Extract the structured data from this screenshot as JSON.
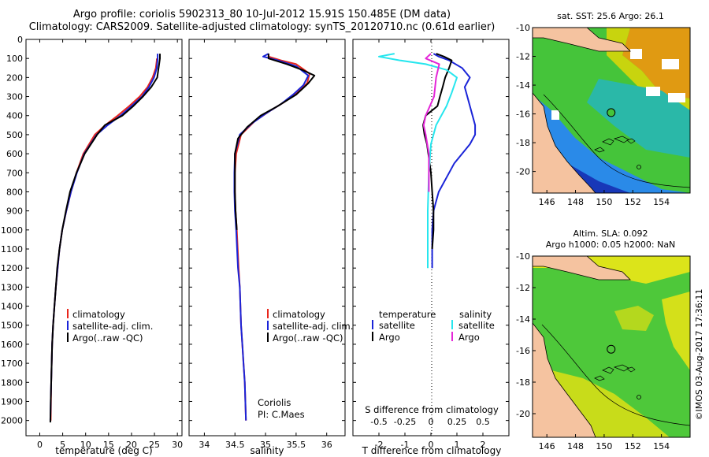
{
  "title_line1": "Argo profile: coriolis 5902313_80 10-Jul-2012 15.91S 150.485E (DM data)",
  "title_line2": "Climatology: CARS2009. Satellite-adjusted climatology: synTS_20120710.nc (0.61d earlier)",
  "watermark": "©IMOS 03-Aug-2017 17:36:11",
  "colors": {
    "climatology": "#e8261c",
    "satellite": "#1a24d8",
    "argo": "#000000",
    "cyan": "#26e6ee",
    "magenta": "#e426d8",
    "land": "#f5c3a0"
  },
  "chart_data": [
    {
      "type": "line",
      "id": "temperature",
      "xlabel": "temperature (deg C)",
      "xlim": [
        -3,
        31
      ],
      "ylim": [
        2080,
        0
      ],
      "xticks": [
        0,
        5,
        10,
        15,
        20,
        25,
        30
      ],
      "yticks": [
        0,
        100,
        200,
        300,
        400,
        500,
        600,
        700,
        800,
        900,
        1000,
        1100,
        1200,
        1300,
        1400,
        1500,
        1600,
        1700,
        1800,
        1900,
        2000
      ],
      "legend": [
        "climatology",
        "satellite-adj. clim.",
        "Argo(..raw -QC)"
      ],
      "series": [
        {
          "name": "climatology",
          "color_key": "climatology",
          "x": [
            25.5,
            25.5,
            25.3,
            24.6,
            23.5,
            21.8,
            19.5,
            17.0,
            14.3,
            12.0,
            9.5,
            8.0,
            6.8,
            5.8,
            4.9,
            4.3,
            3.9,
            3.5,
            3.2,
            2.9,
            2.7,
            2.6,
            2.5,
            2.4
          ],
          "y": [
            100,
            110,
            150,
            200,
            250,
            300,
            350,
            400,
            450,
            500,
            600,
            700,
            800,
            900,
            1000,
            1100,
            1200,
            1300,
            1400,
            1500,
            1600,
            1700,
            1800,
            2000
          ]
        },
        {
          "name": "satellite-adj. clim.",
          "color_key": "satellite",
          "x": [
            25.7,
            25.7,
            25.5,
            24.9,
            23.8,
            22.3,
            20.0,
            17.6,
            14.8,
            12.4,
            9.7,
            8.1,
            6.8,
            5.8,
            4.9,
            4.3,
            3.9,
            3.5,
            3.2,
            2.9,
            2.7,
            2.6,
            2.5,
            2.4,
            2.3
          ],
          "y": [
            75,
            100,
            150,
            200,
            250,
            300,
            350,
            400,
            450,
            500,
            600,
            700,
            800,
            900,
            1000,
            1100,
            1200,
            1300,
            1400,
            1500,
            1600,
            1700,
            1800,
            1900,
            2000
          ]
        },
        {
          "name": "Argo(..raw -QC)",
          "color_key": "argo",
          "x": [
            26.2,
            26.2,
            25.9,
            25.6,
            24.3,
            22.5,
            20.4,
            18.0,
            14.2,
            12.5,
            9.8,
            8.0,
            6.6,
            5.7,
            4.9,
            4.3,
            3.8,
            3.5,
            3.2,
            2.9,
            2.7,
            2.6,
            2.5,
            2.4,
            2.3
          ],
          "y": [
            75,
            100,
            150,
            200,
            250,
            300,
            350,
            400,
            450,
            500,
            600,
            700,
            800,
            900,
            1000,
            1100,
            1200,
            1300,
            1400,
            1500,
            1600,
            1700,
            1800,
            1900,
            2010
          ]
        }
      ]
    },
    {
      "type": "line",
      "id": "salinity",
      "xlabel": "salinity",
      "xlim": [
        33.75,
        36.3
      ],
      "ylim": [
        2080,
        0
      ],
      "xticks": [
        34,
        34.5,
        35,
        35.5,
        36
      ],
      "xticklabels": [
        "34",
        "34.5",
        "35",
        "35.5",
        "36"
      ],
      "legend": [
        "climatology",
        "satellite-adj. clim.",
        "Argo(..raw -QC)"
      ],
      "annotation": [
        "Coriolis",
        "PI: C.Maes"
      ],
      "series": [
        {
          "name": "climatology",
          "color_key": "climatology",
          "x": [
            35.05,
            35.05,
            35.25,
            35.5,
            35.72,
            35.68,
            35.52,
            35.3,
            35.05,
            34.82,
            34.6,
            34.52,
            34.5,
            34.5,
            34.51,
            34.53,
            34.56,
            34.58,
            34.6,
            34.62,
            34.64,
            34.66,
            34.68
          ],
          "y": [
            75,
            90,
            110,
            130,
            180,
            230,
            280,
            330,
            380,
            430,
            500,
            600,
            700,
            800,
            900,
            1000,
            1200,
            1300,
            1500,
            1600,
            1700,
            1800,
            2000
          ]
        },
        {
          "name": "satellite-adj. clim.",
          "color_key": "satellite",
          "x": [
            35.05,
            34.96,
            35.2,
            35.5,
            35.7,
            35.62,
            35.45,
            35.25,
            35.0,
            34.78,
            34.58,
            34.5,
            34.49,
            34.49,
            34.5,
            34.52,
            34.55,
            34.58,
            34.6,
            34.62,
            34.64,
            34.66,
            34.68
          ],
          "y": [
            75,
            90,
            110,
            140,
            190,
            240,
            290,
            340,
            390,
            440,
            500,
            600,
            700,
            800,
            900,
            1000,
            1200,
            1300,
            1500,
            1600,
            1700,
            1800,
            2000
          ]
        },
        {
          "name": "Argo(..raw -QC)",
          "color_key": "argo",
          "x": [
            35.05,
            35.05,
            35.35,
            35.6,
            35.8,
            35.7,
            35.5,
            35.2,
            34.92,
            34.7,
            34.55,
            34.5,
            34.5,
            34.5,
            34.51,
            34.53
          ],
          "y": [
            75,
            100,
            130,
            160,
            190,
            230,
            290,
            350,
            400,
            460,
            520,
            600,
            700,
            800,
            900,
            1000
          ]
        }
      ]
    },
    {
      "type": "line",
      "id": "difference",
      "xlabel": "T difference from climatology",
      "x2label": "S difference from climatology",
      "xlim": [
        -3.0,
        3.0
      ],
      "ylim": [
        2080,
        0
      ],
      "xticks": [
        -2,
        -1,
        0,
        1,
        2
      ],
      "x2ticks": [
        -0.5,
        -0.25,
        0,
        0.25,
        0.5
      ],
      "x2ticklabels": [
        "-0.5",
        "-0.25",
        "0",
        "0.25",
        "0.5"
      ],
      "legend_temperature": {
        "header": "temperature",
        "items": [
          "satellite",
          "Argo"
        ]
      },
      "legend_salinity": {
        "header": "salinity",
        "items": [
          "satellite",
          "Argo"
        ]
      },
      "series": [
        {
          "name": "T satellite",
          "color_key": "satellite",
          "x": [
            0.1,
            0.3,
            0.7,
            1.2,
            1.5,
            1.3,
            1.4,
            1.5,
            1.6,
            1.7,
            1.7,
            1.5,
            1.2,
            0.9,
            0.7,
            0.3,
            0.1,
            0.05,
            0.05
          ],
          "y": [
            75,
            90,
            110,
            150,
            200,
            250,
            300,
            350,
            400,
            450,
            500,
            550,
            600,
            650,
            700,
            800,
            900,
            1000,
            1200
          ]
        },
        {
          "name": "T Argo",
          "color_key": "argo",
          "x": [
            0.2,
            0.5,
            0.8,
            0.7,
            0.55,
            0.45,
            0.35,
            0.25,
            -0.2,
            -0.3,
            -0.25,
            -0.15,
            -0.1,
            -0.05,
            0.0,
            0.05,
            0.1,
            0.1,
            0.05
          ],
          "y": [
            75,
            90,
            110,
            150,
            200,
            250,
            300,
            350,
            400,
            450,
            500,
            550,
            600,
            650,
            700,
            800,
            900,
            1000,
            1100
          ]
        },
        {
          "name": "S satellite",
          "color_key": "cyan",
          "x": [
            -0.35,
            -0.5,
            -0.3,
            -0.05,
            0.15,
            0.25,
            0.2,
            0.15,
            0.05,
            0.0,
            -0.02,
            -0.03,
            -0.03
          ],
          "y": [
            75,
            90,
            110,
            130,
            160,
            200,
            280,
            350,
            450,
            550,
            700,
            900,
            1200
          ]
        },
        {
          "name": "S Argo",
          "color_key": "magenta",
          "x": [
            0.0,
            -0.05,
            0.08,
            0.05,
            0.03,
            -0.05,
            -0.07,
            -0.05,
            -0.02,
            -0.02,
            -0.02
          ],
          "y": [
            75,
            100,
            130,
            200,
            300,
            400,
            450,
            500,
            600,
            700,
            800
          ]
        }
      ]
    },
    {
      "type": "heatmap",
      "id": "sst_map",
      "title": "sat. SST: 25.6  Argo: 26.1",
      "xlim": [
        145,
        156
      ],
      "ylim": [
        -21.5,
        -10
      ],
      "xticks": [
        146,
        148,
        150,
        152,
        154
      ],
      "yticks": [
        -10,
        -12,
        -14,
        -16,
        -18,
        -20
      ],
      "argo_position": {
        "lon": 150.485,
        "lat": -15.91
      }
    },
    {
      "type": "heatmap",
      "id": "sla_map",
      "title_line1": "Altim. SLA: 0.092",
      "title_line2": "Argo h1000: 0.05 h2000: NaN",
      "xlim": [
        145,
        156
      ],
      "ylim": [
        -21.5,
        -10
      ],
      "xticks": [
        146,
        148,
        150,
        152,
        154
      ],
      "yticks": [
        -10,
        -12,
        -14,
        -16,
        -18,
        -20
      ],
      "argo_position": {
        "lon": 150.485,
        "lat": -15.91
      }
    }
  ]
}
